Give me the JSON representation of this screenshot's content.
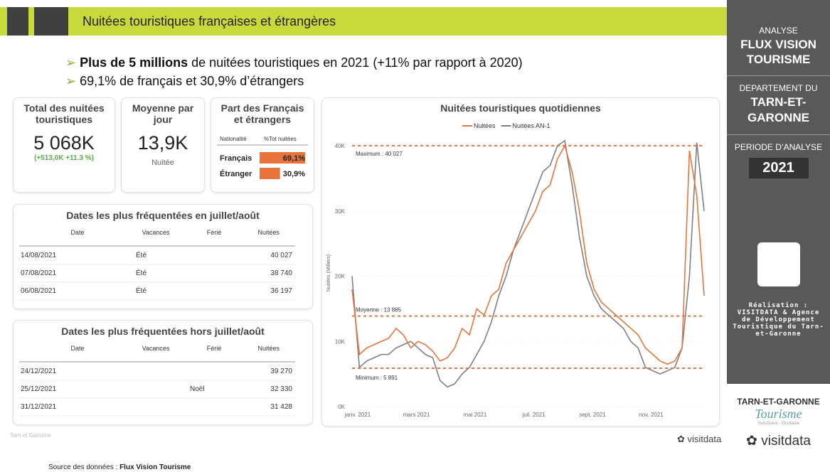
{
  "header": {
    "title": "Nuitées touristiques françaises et étrangères"
  },
  "bullets": [
    {
      "bold": "Plus de 5 millions",
      "text": " de nuitées touristiques en 2021 (+11% par rapport à 2020)"
    },
    {
      "text": "69,1% de français et 30,9% d’étrangers"
    }
  ],
  "kpi_total": {
    "title": "Total des nuitées touristiques",
    "value": "5 068K",
    "delta": "(+513,0K +11.3 %)"
  },
  "kpi_mean": {
    "title": "Moyenne par jour",
    "value": "13,9K",
    "unit": "Nuitée"
  },
  "share": {
    "title": "Part des Français et étrangers",
    "headers": [
      "Nationalité",
      "%Tot nuitées"
    ],
    "categories": [
      "Français",
      "Étranger"
    ],
    "values": [
      69.1,
      30.9
    ],
    "value_labels": [
      "69,1%",
      "30,9%"
    ],
    "color": "#e8743b"
  },
  "table_summer": {
    "title": "Dates les plus fréquentées en juillet/août",
    "columns": [
      "Date",
      "Vacances",
      "Férié",
      "Nuitées"
    ],
    "rows": [
      {
        "date": "14/08/2021",
        "vacances": "Été",
        "nuitees": "40 027"
      },
      {
        "date": "07/08/2021",
        "vacances": "Été",
        "nuitees": "38 740"
      },
      {
        "date": "06/08/2021",
        "vacances": "Été",
        "nuitees": "36 197"
      }
    ]
  },
  "table_other": {
    "title": "Dates les plus fréquentées hors juillet/août",
    "columns": [
      "Date",
      "Vacances",
      "Férié",
      "Nuitées"
    ],
    "rows": [
      {
        "date": "24/12/2021",
        "nuitees": "39 270"
      },
      {
        "date": "25/12/2021",
        "ferie": "Noël",
        "nuitees": "32 330"
      },
      {
        "date": "31/12/2021",
        "nuitees": "31 428"
      }
    ]
  },
  "sidebar": {
    "analyse": "ANALYSE",
    "flux": "FLUX VISION TOURISME",
    "dept": "DEPARTEMENT DU",
    "dept_name": "TARN-ET-GARONNE",
    "periode": "PERIODE D’ANALYSE",
    "year": "2021",
    "credits": "Réalisation : VISITDATA & Agence de Développement Touristique du Tarn-et-Garonne",
    "logo_top": "TARN-ET-GARONNE",
    "logo_script": "Tourisme",
    "logo_sub": "Sud-Ouest - Occitanie",
    "brand": "visitdata"
  },
  "footer": {
    "source_label": "Source des données : ",
    "source": "Flux Vision Tourisme",
    "faint": "Tarn et Garonne",
    "brand": "visitdata"
  },
  "chart_data": {
    "type": "line",
    "title": "Nuitées touristiques quotidiennes",
    "y_label": "Nuitées (Milliers)",
    "categories": [
      "janv. 2021",
      null,
      null,
      null,
      null,
      null,
      null,
      null,
      "mars 2021",
      null,
      null,
      null,
      null,
      null,
      null,
      null,
      "mai 2021",
      null,
      null,
      null,
      null,
      null,
      null,
      null,
      "juil. 2021",
      null,
      null,
      null,
      null,
      null,
      null,
      null,
      "sept. 2021",
      null,
      null,
      null,
      null,
      null,
      null,
      null,
      "nov. 2021",
      null,
      null,
      null,
      null,
      null,
      null,
      null,
      null
    ],
    "series": [
      {
        "name": "Nuitées",
        "color": "#e8743b",
        "values": [
          18000,
          8000,
          9000,
          9500,
          10000,
          10500,
          12000,
          11000,
          9000,
          10000,
          9500,
          8500,
          7000,
          7500,
          9000,
          12000,
          11000,
          15000,
          14000,
          17000,
          18000,
          22000,
          24000,
          26000,
          28000,
          30000,
          33000,
          34000,
          38000,
          40027,
          36000,
          30000,
          22000,
          18000,
          16000,
          15000,
          14000,
          13000,
          12000,
          11000,
          9000,
          8000,
          7000,
          6500,
          7000,
          9000,
          39270,
          32330,
          17000
        ]
      },
      {
        "name": "Nuitées AN-1",
        "color": "#7f7f7f",
        "values": [
          20000,
          6000,
          7000,
          7500,
          8000,
          8000,
          9000,
          9500,
          10000,
          9000,
          8000,
          7500,
          4000,
          3000,
          3500,
          5000,
          6000,
          8000,
          10000,
          13000,
          17000,
          20000,
          24000,
          27000,
          30000,
          33000,
          36000,
          37000,
          40000,
          40800,
          34000,
          26000,
          20000,
          17000,
          15000,
          14000,
          13000,
          12000,
          10000,
          9000,
          6000,
          5500,
          5000,
          5500,
          6000,
          9000,
          20000,
          40500,
          30000
        ]
      }
    ],
    "ref_lines": [
      {
        "label": "Maximum : 40 027",
        "value": 40027
      },
      {
        "label": "Moyenne : 13 885",
        "value": 13885
      },
      {
        "label": "Minimum : 5 891",
        "value": 5891
      }
    ],
    "ylim": [
      0,
      41000
    ],
    "yticks": [
      {
        "value": 0,
        "label": "0K"
      },
      {
        "value": 10000,
        "label": "10K"
      },
      {
        "value": 20000,
        "label": "20K"
      },
      {
        "value": 30000,
        "label": "30K"
      },
      {
        "value": 40000,
        "label": "40K"
      }
    ],
    "grid": true
  }
}
